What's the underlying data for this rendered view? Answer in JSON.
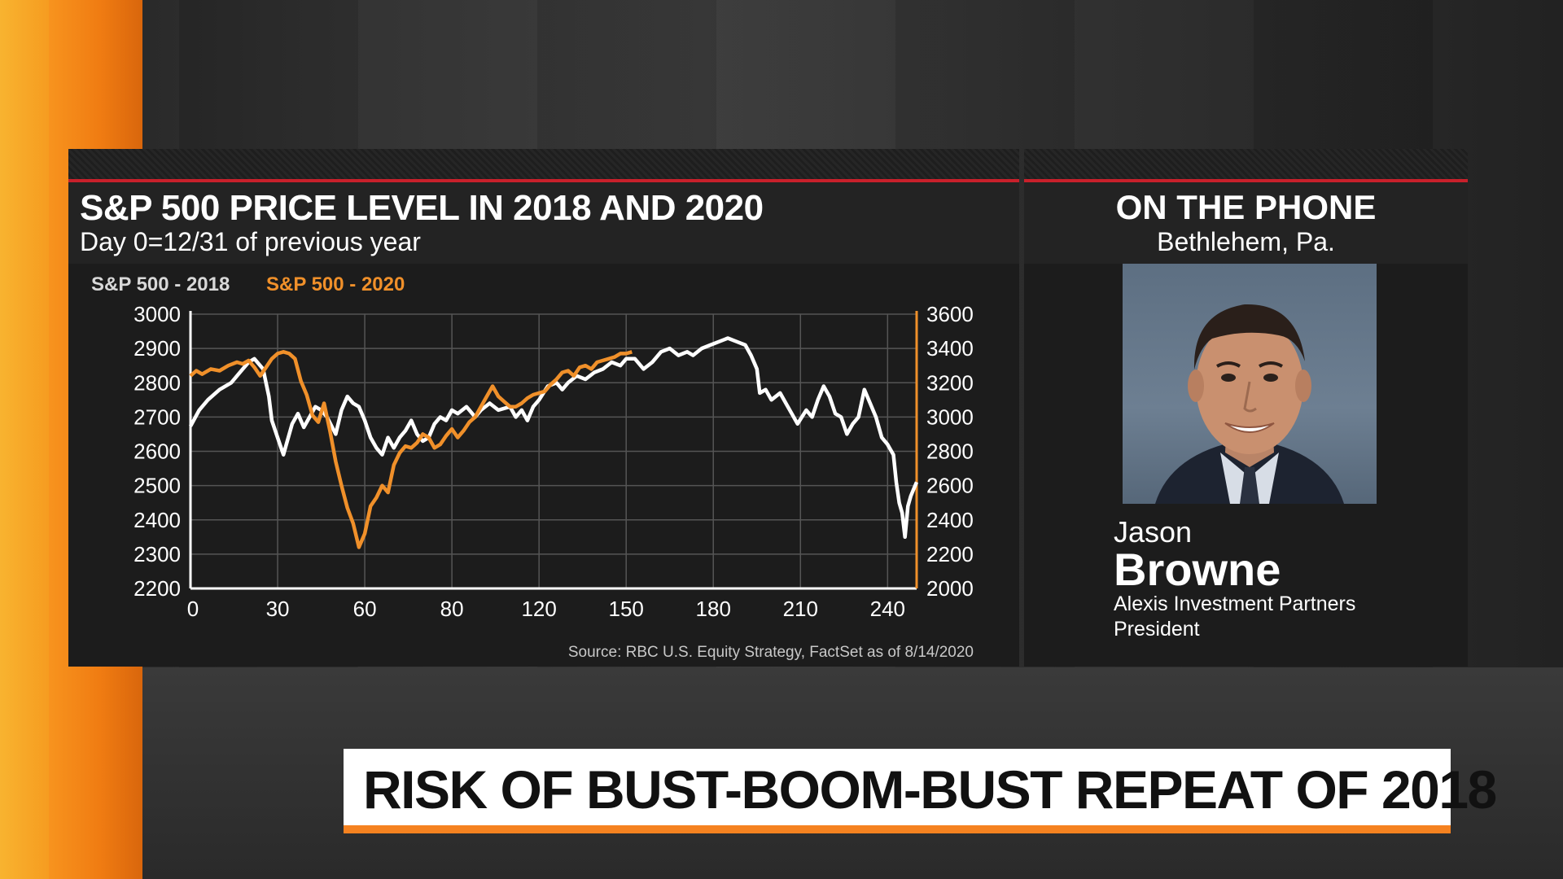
{
  "chart_data": {
    "type": "line",
    "title": "S&P 500 PRICE LEVEL IN 2018 AND 2020",
    "subtitle": "Day 0=12/31 of previous year",
    "legend": [
      "S&P 500 - 2018",
      "S&P 500 - 2020"
    ],
    "x_ticks": [
      "0",
      "30",
      "60",
      "80",
      "120",
      "150",
      "180",
      "210",
      "240"
    ],
    "y_left_ticks": [
      "3000",
      "2900",
      "2800",
      "2700",
      "2600",
      "2500",
      "2400",
      "2300",
      "2200"
    ],
    "y_right_ticks": [
      "3600",
      "3400",
      "3200",
      "3000",
      "2800",
      "2600",
      "2400",
      "2200",
      "2000"
    ],
    "xlim": [
      0,
      250
    ],
    "ylim_left": [
      2200,
      3000
    ],
    "ylim_right": [
      2000,
      3600
    ],
    "series": [
      {
        "name": "S&P 500 - 2018",
        "axis": "left",
        "color": "#ffffff",
        "points": [
          [
            0,
            2673
          ],
          [
            3,
            2720
          ],
          [
            6,
            2750
          ],
          [
            10,
            2780
          ],
          [
            14,
            2800
          ],
          [
            17,
            2830
          ],
          [
            20,
            2860
          ],
          [
            22,
            2870
          ],
          [
            25,
            2840
          ],
          [
            27,
            2760
          ],
          [
            28,
            2690
          ],
          [
            30,
            2640
          ],
          [
            32,
            2590
          ],
          [
            33,
            2620
          ],
          [
            35,
            2680
          ],
          [
            37,
            2710
          ],
          [
            39,
            2670
          ],
          [
            41,
            2700
          ],
          [
            43,
            2730
          ],
          [
            45,
            2720
          ],
          [
            47,
            2700
          ],
          [
            50,
            2650
          ],
          [
            52,
            2720
          ],
          [
            54,
            2760
          ],
          [
            56,
            2740
          ],
          [
            58,
            2730
          ],
          [
            60,
            2690
          ],
          [
            62,
            2640
          ],
          [
            64,
            2610
          ],
          [
            66,
            2590
          ],
          [
            68,
            2640
          ],
          [
            70,
            2610
          ],
          [
            72,
            2640
          ],
          [
            74,
            2660
          ],
          [
            76,
            2690
          ],
          [
            78,
            2650
          ],
          [
            80,
            2630
          ],
          [
            82,
            2640
          ],
          [
            84,
            2680
          ],
          [
            86,
            2700
          ],
          [
            88,
            2690
          ],
          [
            90,
            2720
          ],
          [
            92,
            2710
          ],
          [
            95,
            2730
          ],
          [
            98,
            2700
          ],
          [
            100,
            2720
          ],
          [
            103,
            2740
          ],
          [
            106,
            2720
          ],
          [
            110,
            2730
          ],
          [
            112,
            2700
          ],
          [
            114,
            2720
          ],
          [
            116,
            2690
          ],
          [
            118,
            2730
          ],
          [
            120,
            2750
          ],
          [
            123,
            2790
          ],
          [
            126,
            2800
          ],
          [
            128,
            2780
          ],
          [
            130,
            2800
          ],
          [
            133,
            2820
          ],
          [
            136,
            2810
          ],
          [
            139,
            2830
          ],
          [
            142,
            2840
          ],
          [
            145,
            2860
          ],
          [
            148,
            2850
          ],
          [
            150,
            2870
          ],
          [
            153,
            2870
          ],
          [
            156,
            2840
          ],
          [
            159,
            2860
          ],
          [
            162,
            2890
          ],
          [
            165,
            2900
          ],
          [
            168,
            2880
          ],
          [
            171,
            2890
          ],
          [
            173,
            2880
          ],
          [
            176,
            2900
          ],
          [
            179,
            2910
          ],
          [
            182,
            2920
          ],
          [
            185,
            2930
          ],
          [
            188,
            2920
          ],
          [
            191,
            2910
          ],
          [
            193,
            2880
          ],
          [
            195,
            2840
          ],
          [
            196,
            2770
          ],
          [
            198,
            2780
          ],
          [
            200,
            2750
          ],
          [
            203,
            2770
          ],
          [
            205,
            2740
          ],
          [
            207,
            2710
          ],
          [
            209,
            2680
          ],
          [
            212,
            2720
          ],
          [
            214,
            2700
          ],
          [
            216,
            2750
          ],
          [
            218,
            2790
          ],
          [
            220,
            2760
          ],
          [
            222,
            2710
          ],
          [
            224,
            2700
          ],
          [
            226,
            2650
          ],
          [
            228,
            2680
          ],
          [
            230,
            2700
          ],
          [
            232,
            2780
          ],
          [
            234,
            2740
          ],
          [
            236,
            2700
          ],
          [
            238,
            2640
          ],
          [
            240,
            2620
          ],
          [
            242,
            2590
          ],
          [
            243,
            2510
          ],
          [
            244,
            2450
          ],
          [
            245,
            2420
          ],
          [
            246,
            2350
          ],
          [
            247,
            2440
          ],
          [
            248,
            2470
          ],
          [
            249,
            2490
          ],
          [
            250,
            2510
          ]
        ]
      },
      {
        "name": "S&P 500 - 2020",
        "axis": "right",
        "color": "#f0902a",
        "points": [
          [
            0,
            3240
          ],
          [
            2,
            3270
          ],
          [
            4,
            3250
          ],
          [
            7,
            3280
          ],
          [
            10,
            3270
          ],
          [
            13,
            3300
          ],
          [
            16,
            3320
          ],
          [
            18,
            3310
          ],
          [
            20,
            3330
          ],
          [
            22,
            3290
          ],
          [
            24,
            3240
          ],
          [
            26,
            3290
          ],
          [
            28,
            3340
          ],
          [
            30,
            3370
          ],
          [
            32,
            3380
          ],
          [
            34,
            3370
          ],
          [
            36,
            3340
          ],
          [
            38,
            3210
          ],
          [
            40,
            3130
          ],
          [
            42,
            3010
          ],
          [
            44,
            2970
          ],
          [
            46,
            3080
          ],
          [
            48,
            2920
          ],
          [
            50,
            2740
          ],
          [
            52,
            2600
          ],
          [
            54,
            2470
          ],
          [
            56,
            2380
          ],
          [
            58,
            2240
          ],
          [
            60,
            2320
          ],
          [
            62,
            2480
          ],
          [
            64,
            2530
          ],
          [
            66,
            2600
          ],
          [
            68,
            2560
          ],
          [
            70,
            2720
          ],
          [
            72,
            2790
          ],
          [
            74,
            2830
          ],
          [
            76,
            2820
          ],
          [
            78,
            2850
          ],
          [
            80,
            2900
          ],
          [
            82,
            2880
          ],
          [
            84,
            2820
          ],
          [
            86,
            2840
          ],
          [
            88,
            2890
          ],
          [
            90,
            2930
          ],
          [
            92,
            2880
          ],
          [
            94,
            2920
          ],
          [
            96,
            2970
          ],
          [
            98,
            3000
          ],
          [
            100,
            3060
          ],
          [
            102,
            3120
          ],
          [
            104,
            3180
          ],
          [
            106,
            3120
          ],
          [
            108,
            3090
          ],
          [
            110,
            3060
          ],
          [
            112,
            3060
          ],
          [
            114,
            3080
          ],
          [
            116,
            3110
          ],
          [
            118,
            3130
          ],
          [
            120,
            3140
          ],
          [
            122,
            3150
          ],
          [
            124,
            3190
          ],
          [
            126,
            3220
          ],
          [
            128,
            3260
          ],
          [
            130,
            3270
          ],
          [
            132,
            3240
          ],
          [
            134,
            3290
          ],
          [
            136,
            3300
          ],
          [
            138,
            3280
          ],
          [
            140,
            3320
          ],
          [
            142,
            3330
          ],
          [
            144,
            3340
          ],
          [
            146,
            3350
          ],
          [
            148,
            3370
          ],
          [
            150,
            3370
          ],
          [
            152,
            3380
          ]
        ]
      }
    ],
    "source": "Source: RBC U.S. Equity Strategy, FactSet as of 8/14/2020"
  },
  "phone": {
    "title": "ON THE PHONE",
    "location": "Bethlehem, Pa.",
    "first_name": "Jason",
    "last_name": "Browne",
    "company": "Alexis Investment Partners",
    "role": "President"
  },
  "headline": "RISK OF BUST-BOOM-BUST REPEAT OF 2018",
  "colors": {
    "accent_orange": "#f58220",
    "rule_red": "#c8202b",
    "series_2018": "#ffffff",
    "series_2020": "#f0902a"
  }
}
